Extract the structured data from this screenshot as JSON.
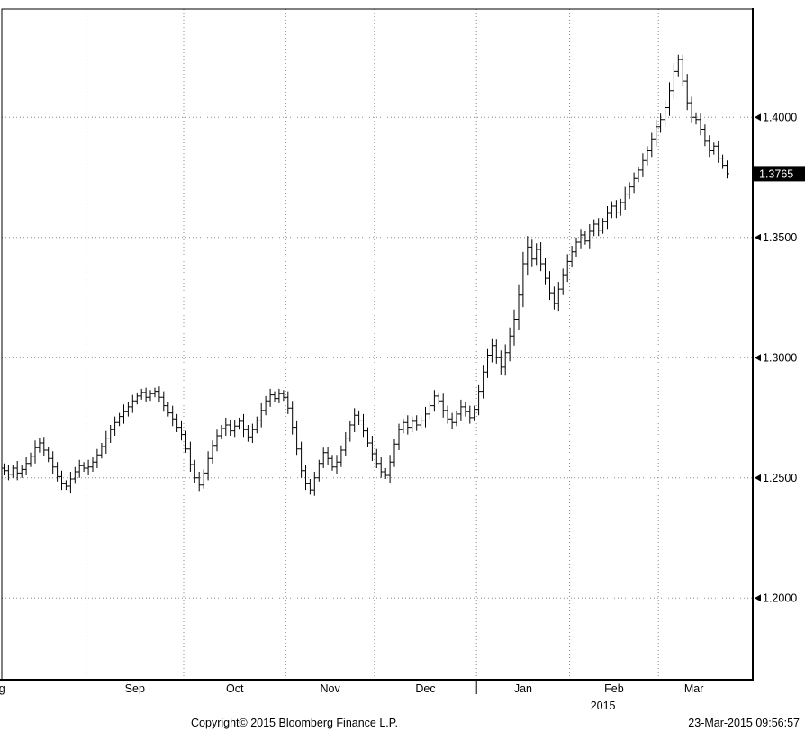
{
  "chart_data": {
    "type": "bar",
    "mark": "ohlc",
    "title": "",
    "ylim": [
      1.166,
      1.445
    ],
    "grid": "dotted",
    "legend": "none",
    "colors": {
      "bar": "#000000",
      "grid": "#8a8a8a",
      "axis": "#000000",
      "last_price_bg": "#000000",
      "last_price_fg": "#ffffff"
    },
    "y_ticks": [
      {
        "label": "1.4000",
        "value": 1.4
      },
      {
        "label": "1.3500",
        "value": 1.35
      },
      {
        "label": "1.3000",
        "value": 1.3
      },
      {
        "label": "1.2500",
        "value": 1.25
      },
      {
        "label": "1.2000",
        "value": 1.2
      }
    ],
    "last_price": {
      "label": "1.3765",
      "value": 1.3765
    },
    "x_axis": {
      "year_label": "2015",
      "year_divider_bar": 107
    },
    "months": [
      {
        "label": "Aug",
        "start": -22
      },
      {
        "label": "Sep",
        "start": 19
      },
      {
        "label": "Oct",
        "start": 41
      },
      {
        "label": "Nov",
        "start": 64
      },
      {
        "label": "Dec",
        "start": 84
      },
      {
        "label": "Jan",
        "start": 107
      },
      {
        "label": "Feb",
        "start": 128
      },
      {
        "label": "Mar",
        "start": 148
      }
    ],
    "bar_fields": [
      "open",
      "high",
      "low",
      "close"
    ],
    "bars": [
      [
        1.254,
        1.256,
        1.251,
        1.253
      ],
      [
        1.253,
        1.2555,
        1.249,
        1.2515
      ],
      [
        1.2515,
        1.2555,
        1.25,
        1.254
      ],
      [
        1.254,
        1.257,
        1.249,
        1.252
      ],
      [
        1.252,
        1.2555,
        1.25,
        1.2535
      ],
      [
        1.2535,
        1.2585,
        1.251,
        1.256
      ],
      [
        1.256,
        1.2605,
        1.2545,
        1.259
      ],
      [
        1.259,
        1.2655,
        1.256,
        1.2625
      ],
      [
        1.2625,
        1.2665,
        1.2605,
        1.2645
      ],
      [
        1.2645,
        1.267,
        1.259,
        1.2615
      ],
      [
        1.2615,
        1.263,
        1.2565,
        1.258
      ],
      [
        1.258,
        1.261,
        1.2515,
        1.2545
      ],
      [
        1.2545,
        1.2565,
        1.2485,
        1.2505
      ],
      [
        1.2505,
        1.253,
        1.245,
        1.2475
      ],
      [
        1.2475,
        1.249,
        1.245,
        1.2465
      ],
      [
        1.2465,
        1.2525,
        1.2435,
        1.2495
      ],
      [
        1.2495,
        1.2545,
        1.2475,
        1.2525
      ],
      [
        1.2525,
        1.2575,
        1.25,
        1.255
      ],
      [
        1.255,
        1.2565,
        1.2525,
        1.254
      ],
      [
        1.254,
        1.2575,
        1.251,
        1.2545
      ],
      [
        1.2545,
        1.2585,
        1.2525,
        1.2565
      ],
      [
        1.2565,
        1.262,
        1.254,
        1.2595
      ],
      [
        1.2595,
        1.2645,
        1.258,
        1.263
      ],
      [
        1.263,
        1.2695,
        1.26,
        1.2665
      ],
      [
        1.2665,
        1.272,
        1.2645,
        1.27
      ],
      [
        1.27,
        1.2755,
        1.2675,
        1.273
      ],
      [
        1.273,
        1.277,
        1.2715,
        1.2755
      ],
      [
        1.2755,
        1.2805,
        1.2725,
        1.2775
      ],
      [
        1.2775,
        1.2815,
        1.2755,
        1.2795
      ],
      [
        1.2795,
        1.2845,
        1.277,
        1.282
      ],
      [
        1.282,
        1.2855,
        1.2805,
        1.284
      ],
      [
        1.284,
        1.287,
        1.2825,
        1.2855
      ],
      [
        1.2855,
        1.2875,
        1.2815,
        1.2835
      ],
      [
        1.2835,
        1.2865,
        1.282,
        1.285
      ],
      [
        1.285,
        1.2875,
        1.2835,
        1.286
      ],
      [
        1.286,
        1.288,
        1.2815,
        1.2835
      ],
      [
        1.2835,
        1.286,
        1.2775,
        1.28
      ],
      [
        1.28,
        1.2815,
        1.2755,
        1.277
      ],
      [
        1.277,
        1.28,
        1.2715,
        1.2745
      ],
      [
        1.2745,
        1.2765,
        1.269,
        1.271
      ],
      [
        1.271,
        1.2735,
        1.2655,
        1.268
      ],
      [
        1.268,
        1.2695,
        1.2605,
        1.262
      ],
      [
        1.262,
        1.265,
        1.2525,
        1.2555
      ],
      [
        1.2555,
        1.2575,
        1.248,
        1.25
      ],
      [
        1.25,
        1.2525,
        1.2445,
        1.247
      ],
      [
        1.247,
        1.2535,
        1.2455,
        1.252
      ],
      [
        1.252,
        1.261,
        1.249,
        1.258
      ],
      [
        1.258,
        1.2655,
        1.256,
        1.2635
      ],
      [
        1.2635,
        1.27,
        1.261,
        1.2675
      ],
      [
        1.2675,
        1.272,
        1.266,
        1.2705
      ],
      [
        1.2705,
        1.275,
        1.2675,
        1.272
      ],
      [
        1.272,
        1.274,
        1.2675,
        1.2695
      ],
      [
        1.2695,
        1.274,
        1.267,
        1.2715
      ],
      [
        1.2715,
        1.275,
        1.27,
        1.2735
      ],
      [
        1.2735,
        1.2765,
        1.267,
        1.27
      ],
      [
        1.27,
        1.272,
        1.265,
        1.267
      ],
      [
        1.267,
        1.2725,
        1.2645,
        1.27
      ],
      [
        1.27,
        1.2755,
        1.2685,
        1.274
      ],
      [
        1.274,
        1.281,
        1.271,
        1.278
      ],
      [
        1.278,
        1.284,
        1.276,
        1.282
      ],
      [
        1.282,
        1.287,
        1.2795,
        1.2845
      ],
      [
        1.2845,
        1.286,
        1.2815,
        1.283
      ],
      [
        1.283,
        1.287,
        1.281,
        1.285
      ],
      [
        1.285,
        1.2865,
        1.282,
        1.2835
      ],
      [
        1.2835,
        1.286,
        1.2765,
        1.279
      ],
      [
        1.279,
        1.282,
        1.268,
        1.271
      ],
      [
        1.271,
        1.2735,
        1.2595,
        1.262
      ],
      [
        1.262,
        1.265,
        1.25,
        1.253
      ],
      [
        1.253,
        1.2555,
        1.245,
        1.2475
      ],
      [
        1.2475,
        1.2495,
        1.243,
        1.245
      ],
      [
        1.245,
        1.2525,
        1.2425,
        1.25
      ],
      [
        1.25,
        1.2575,
        1.2485,
        1.256
      ],
      [
        1.256,
        1.2625,
        1.254,
        1.2605
      ],
      [
        1.2605,
        1.263,
        1.2555,
        1.258
      ],
      [
        1.258,
        1.2595,
        1.253,
        1.2545
      ],
      [
        1.2545,
        1.2595,
        1.2515,
        1.2565
      ],
      [
        1.2565,
        1.2635,
        1.2545,
        1.2615
      ],
      [
        1.2615,
        1.269,
        1.259,
        1.2665
      ],
      [
        1.2665,
        1.2735,
        1.265,
        1.272
      ],
      [
        1.272,
        1.279,
        1.269,
        1.276
      ],
      [
        1.276,
        1.278,
        1.272,
        1.274
      ],
      [
        1.274,
        1.2765,
        1.267,
        1.2695
      ],
      [
        1.2695,
        1.271,
        1.263,
        1.2645
      ],
      [
        1.2645,
        1.2675,
        1.257,
        1.26
      ],
      [
        1.26,
        1.262,
        1.254,
        1.256
      ],
      [
        1.256,
        1.2585,
        1.25,
        1.2525
      ],
      [
        1.2525,
        1.254,
        1.2495,
        1.251
      ],
      [
        1.251,
        1.2595,
        1.248,
        1.2565
      ],
      [
        1.2565,
        1.266,
        1.2545,
        1.264
      ],
      [
        1.264,
        1.2725,
        1.2615,
        1.27
      ],
      [
        1.27,
        1.2745,
        1.2685,
        1.273
      ],
      [
        1.273,
        1.276,
        1.268,
        1.271
      ],
      [
        1.271,
        1.2755,
        1.269,
        1.2735
      ],
      [
        1.2735,
        1.276,
        1.2695,
        1.272
      ],
      [
        1.272,
        1.2755,
        1.2705,
        1.274
      ],
      [
        1.274,
        1.2795,
        1.271,
        1.2765
      ],
      [
        1.2765,
        1.282,
        1.2745,
        1.28
      ],
      [
        1.28,
        1.2865,
        1.2775,
        1.284
      ],
      [
        1.284,
        1.2855,
        1.2805,
        1.282
      ],
      [
        1.282,
        1.285,
        1.275,
        1.278
      ],
      [
        1.278,
        1.28,
        1.2725,
        1.2745
      ],
      [
        1.2745,
        1.277,
        1.2705,
        1.273
      ],
      [
        1.273,
        1.278,
        1.2715,
        1.2765
      ],
      [
        1.2765,
        1.2825,
        1.2735,
        1.2795
      ],
      [
        1.2795,
        1.2815,
        1.2755,
        1.2775
      ],
      [
        1.2775,
        1.28,
        1.2725,
        1.275
      ],
      [
        1.275,
        1.28,
        1.2735,
        1.2785
      ],
      [
        1.2785,
        1.2885,
        1.276,
        1.286
      ],
      [
        1.286,
        1.297,
        1.283,
        1.294
      ],
      [
        1.294,
        1.3035,
        1.2915,
        1.301
      ],
      [
        1.301,
        1.308,
        1.298,
        1.305
      ],
      [
        1.305,
        1.3075,
        1.2975,
        1.3
      ],
      [
        1.3,
        1.303,
        1.293,
        1.296
      ],
      [
        1.296,
        1.3055,
        1.2925,
        1.302
      ],
      [
        1.302,
        1.3125,
        1.2985,
        1.309
      ],
      [
        1.309,
        1.32,
        1.305,
        1.316
      ],
      [
        1.316,
        1.3305,
        1.3115,
        1.326
      ],
      [
        1.326,
        1.344,
        1.321,
        1.339
      ],
      [
        1.339,
        1.3505,
        1.3345,
        1.346
      ],
      [
        1.346,
        1.349,
        1.338,
        1.341
      ],
      [
        1.341,
        1.3475,
        1.3385,
        1.345
      ],
      [
        1.345,
        1.348,
        1.336,
        1.339
      ],
      [
        1.339,
        1.3415,
        1.3305,
        1.333
      ],
      [
        1.333,
        1.336,
        1.324,
        1.327
      ],
      [
        1.327,
        1.3295,
        1.32,
        1.3225
      ],
      [
        1.3225,
        1.3315,
        1.3195,
        1.3285
      ],
      [
        1.3285,
        1.337,
        1.326,
        1.3345
      ],
      [
        1.3345,
        1.343,
        1.3315,
        1.34
      ],
      [
        1.34,
        1.3465,
        1.3375,
        1.344
      ],
      [
        1.344,
        1.35,
        1.342,
        1.348
      ],
      [
        1.348,
        1.3535,
        1.3455,
        1.351
      ],
      [
        1.351,
        1.3525,
        1.347,
        1.3485
      ],
      [
        1.3485,
        1.3555,
        1.3455,
        1.3525
      ],
      [
        1.3525,
        1.3575,
        1.3505,
        1.3555
      ],
      [
        1.3555,
        1.358,
        1.3505,
        1.353
      ],
      [
        1.353,
        1.358,
        1.3515,
        1.3565
      ],
      [
        1.3565,
        1.363,
        1.3535,
        1.36
      ],
      [
        1.36,
        1.365,
        1.358,
        1.363
      ],
      [
        1.363,
        1.3655,
        1.358,
        1.3605
      ],
      [
        1.3605,
        1.366,
        1.359,
        1.3645
      ],
      [
        1.3645,
        1.371,
        1.3615,
        1.368
      ],
      [
        1.368,
        1.373,
        1.366,
        1.371
      ],
      [
        1.371,
        1.377,
        1.3685,
        1.3745
      ],
      [
        1.3745,
        1.3795,
        1.373,
        1.378
      ],
      [
        1.378,
        1.385,
        1.375,
        1.382
      ],
      [
        1.382,
        1.388,
        1.38,
        1.386
      ],
      [
        1.386,
        1.3935,
        1.3835,
        1.391
      ],
      [
        1.391,
        1.399,
        1.388,
        1.396
      ],
      [
        1.396,
        1.4015,
        1.3935,
        1.399
      ],
      [
        1.399,
        1.407,
        1.396,
        1.404
      ],
      [
        1.404,
        1.4145,
        1.4005,
        1.411
      ],
      [
        1.411,
        1.4225,
        1.4075,
        1.419
      ],
      [
        1.419,
        1.426,
        1.417,
        1.424
      ],
      [
        1.424,
        1.426,
        1.413,
        1.415
      ],
      [
        1.415,
        1.418,
        1.403,
        1.406
      ],
      [
        1.406,
        1.4085,
        1.3975,
        1.4
      ],
      [
        1.4,
        1.402,
        1.397,
        1.399
      ],
      [
        1.399,
        1.4015,
        1.3925,
        1.395
      ],
      [
        1.395,
        1.397,
        1.388,
        1.39
      ],
      [
        1.39,
        1.3925,
        1.3835,
        1.386
      ],
      [
        1.386,
        1.3895,
        1.3845,
        1.388
      ],
      [
        1.388,
        1.39,
        1.381,
        1.383
      ],
      [
        1.383,
        1.3845,
        1.3785,
        1.38
      ],
      [
        1.38,
        1.382,
        1.3745,
        1.3765
      ]
    ]
  },
  "footer": {
    "copyright": "Copyright© 2015 Bloomberg Finance L.P.",
    "timestamp": "23-Mar-2015 09:56:57"
  }
}
